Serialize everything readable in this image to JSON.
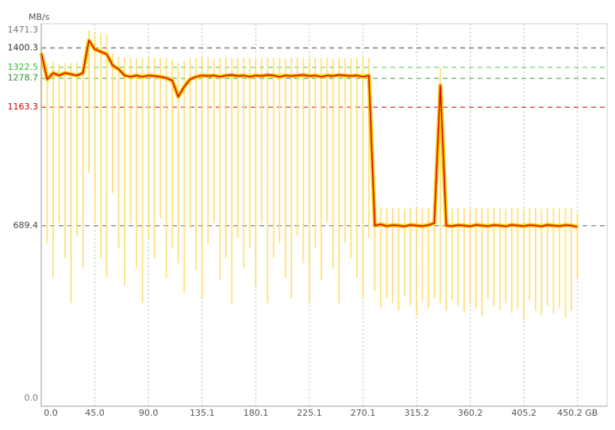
{
  "chart_data": {
    "type": "line",
    "y_label": "MB/s",
    "xlim": [
      0,
      475
    ],
    "ylim": [
      0,
      1471.3
    ],
    "xticks": [
      {
        "value": 0,
        "label": "0.0"
      },
      {
        "value": 45,
        "label": "45.0"
      },
      {
        "value": 90,
        "label": "90.0"
      },
      135.1,
      180.1,
      225.1,
      270.1,
      315.2,
      360.2,
      405.2,
      {
        "value": 450.2,
        "label": "450.2 GB"
      }
    ],
    "yticks": [
      {
        "value": 0,
        "label": "0.0"
      },
      689.4,
      1163.3,
      1278.7,
      1322.5,
      1400.3,
      1471.3
    ],
    "ytick_label_colors": [
      "#777",
      "#444",
      "#cc0000",
      "#2f8f2f",
      "#33bb33",
      "#333",
      "#777"
    ],
    "ytick_line_colors": [
      null,
      "#666",
      "#cc0000",
      "#33aa33",
      "#44cc44",
      "#444",
      null
    ],
    "grid": true,
    "x": [
      0,
      5,
      10,
      15,
      20,
      25,
      30,
      35,
      40,
      45,
      50,
      55,
      60,
      65,
      70,
      75,
      80,
      85,
      90,
      95,
      100,
      105,
      110,
      115,
      120,
      125,
      130,
      135,
      140,
      145,
      150,
      155,
      160,
      165,
      170,
      175,
      180,
      185,
      190,
      195,
      200,
      205,
      210,
      215,
      220,
      225,
      230,
      235,
      240,
      245,
      250,
      255,
      260,
      265,
      270,
      275,
      280,
      285,
      290,
      295,
      300,
      305,
      310,
      315,
      320,
      325,
      330,
      335,
      340,
      345,
      350,
      355,
      360,
      365,
      370,
      375,
      380,
      385,
      390,
      395,
      400,
      405,
      410,
      415,
      420,
      425,
      430,
      435,
      440,
      445,
      450
    ],
    "series": [
      {
        "color": "#ffdd66",
        "role": "range",
        "values": [
          1400,
          1340,
          1345,
          1335,
          1340,
          1338,
          1342,
          1336,
          1470,
          1465,
          1460,
          1455,
          1380,
          1365,
          1360,
          1362,
          1358,
          1360,
          1364,
          1359,
          1361,
          1360,
          1355,
          1340,
          1350,
          1358,
          1362,
          1360,
          1363,
          1359,
          1361,
          1364,
          1360,
          1358,
          1362,
          1360,
          1359,
          1363,
          1361,
          1360,
          1362,
          1358,
          1361,
          1363,
          1360,
          1359,
          1362,
          1360,
          1361,
          1358,
          1363,
          1360,
          1359,
          1362,
          1361,
          1360,
          760,
          765,
          758,
          762,
          760,
          757,
          763,
          760,
          758,
          762,
          765,
          1320,
          760,
          758,
          762,
          760,
          757,
          763,
          760,
          758,
          762,
          760,
          757,
          763,
          760,
          758,
          762,
          760,
          757,
          763,
          760,
          758,
          762,
          760,
          740
        ],
        "low": [
          1150,
          620,
          480,
          700,
          560,
          380,
          650,
          520,
          900,
          700,
          560,
          480,
          820,
          600,
          450,
          700,
          520,
          380,
          640,
          560,
          720,
          480,
          600,
          540,
          420,
          680,
          510,
          400,
          620,
          700,
          470,
          560,
          380,
          640,
          520,
          600,
          450,
          700,
          380,
          560,
          620,
          480,
          400,
          650,
          540,
          380,
          600,
          470,
          700,
          520,
          380,
          620,
          560,
          480,
          400,
          640,
          430,
          360,
          400,
          380,
          350,
          410,
          370,
          330,
          390,
          360,
          400,
          380,
          350,
          390,
          370,
          340,
          380,
          360,
          330,
          400,
          370,
          350,
          380,
          340,
          360,
          310,
          390,
          350,
          330,
          370,
          340,
          360,
          320,
          350,
          480
        ]
      },
      {
        "color": "#e00000",
        "role": "mean",
        "values": [
          1380,
          1275,
          1300,
          1290,
          1300,
          1295,
          1290,
          1300,
          1430,
          1395,
          1385,
          1375,
          1330,
          1315,
          1290,
          1285,
          1290,
          1285,
          1290,
          1288,
          1285,
          1280,
          1270,
          1205,
          1245,
          1275,
          1285,
          1290,
          1288,
          1290,
          1285,
          1290,
          1292,
          1288,
          1290,
          1285,
          1290,
          1288,
          1292,
          1290,
          1285,
          1290,
          1288,
          1290,
          1292,
          1288,
          1290,
          1285,
          1290,
          1288,
          1292,
          1290,
          1288,
          1290,
          1285,
          1290,
          690,
          695,
          688,
          692,
          690,
          687,
          693,
          690,
          688,
          692,
          700,
          1250,
          690,
          688,
          692,
          690,
          687,
          693,
          690,
          688,
          692,
          690,
          687,
          693,
          690,
          688,
          692,
          690,
          687,
          693,
          690,
          688,
          692,
          690,
          685
        ]
      }
    ]
  }
}
